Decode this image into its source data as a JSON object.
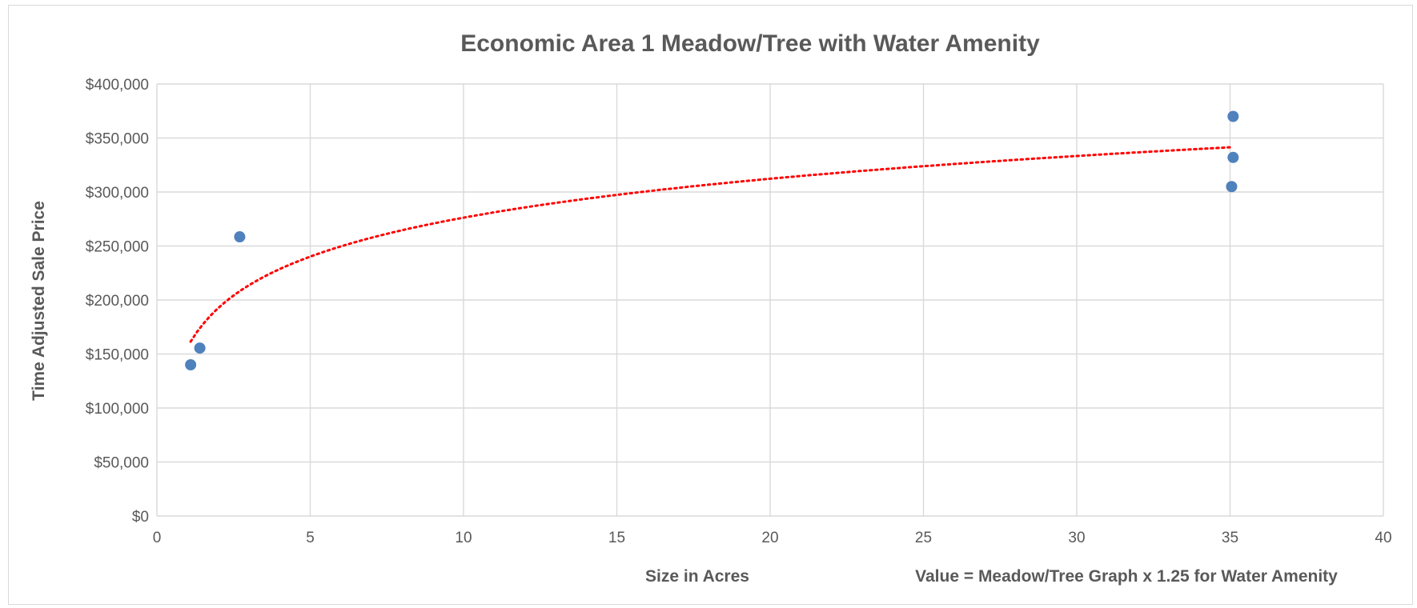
{
  "chart_data": {
    "type": "scatter",
    "title": "Economic Area 1 Meadow/Tree with Water Amenity",
    "xlabel": "Size in Acres",
    "ylabel": "Time Adjusted Sale Price",
    "annotation": "Value = Meadow/Tree Graph x 1.25 for Water Amenity",
    "xlim": [
      0,
      40
    ],
    "ylim": [
      0,
      400000
    ],
    "x_ticks": [
      0,
      5,
      10,
      15,
      20,
      25,
      30,
      35,
      40
    ],
    "x_tick_labels": [
      "0",
      "5",
      "10",
      "15",
      "20",
      "25",
      "30",
      "35",
      "40"
    ],
    "y_ticks": [
      0,
      50000,
      100000,
      150000,
      200000,
      250000,
      300000,
      350000,
      400000
    ],
    "y_tick_labels": [
      "$0",
      "$50,000",
      "$100,000",
      "$150,000",
      "$200,000",
      "$250,000",
      "$300,000",
      "$350,000",
      "$400,000"
    ],
    "grid": true,
    "legend": "none",
    "series": [
      {
        "points": [
          {
            "x": 1.1,
            "y": 140000
          },
          {
            "x": 1.4,
            "y": 155500
          },
          {
            "x": 2.7,
            "y": 258500
          },
          {
            "x": 35.05,
            "y": 305000
          },
          {
            "x": 35.1,
            "y": 332000
          },
          {
            "x": 35.1,
            "y": 370000
          }
        ],
        "color": "#4f81bd"
      }
    ],
    "trendline": {
      "type": "logarithmic",
      "a": 156500,
      "b": 52000,
      "x_range": [
        1.1,
        35.0
      ],
      "color": "#ff0000",
      "style": "dotted"
    }
  }
}
